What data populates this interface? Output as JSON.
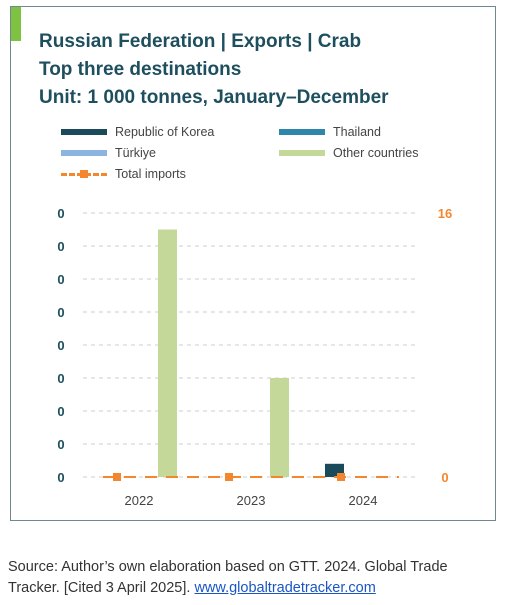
{
  "title": {
    "line1": "Russian Federation | Exports | Crab",
    "line2": "Top three destinations",
    "line3": "Unit: 1 000 tonnes, January–December"
  },
  "source": {
    "text": "Source: Author’s own elaboration based on GTT. 2024. Global Trade Tracker. [Cited 3 April 2025].",
    "link": "www.globaltradetracker.com"
  },
  "colors": {
    "korea": "#1b4a5a",
    "thailand": "#2e86ab",
    "turkiye": "#8bb5e0",
    "other": "#c4d89a",
    "imports": "#f4872e",
    "grid": "#cfcfcf",
    "axis_left": "#1e4f5e",
    "axis_right": "#f4872e"
  },
  "chart_data": {
    "type": "bar",
    "categories": [
      "2022",
      "2023",
      "2024"
    ],
    "series": [
      {
        "name": "Republic of Korea",
        "color_key": "korea",
        "values": [
          0,
          0,
          0.4
        ]
      },
      {
        "name": "Thailand",
        "color_key": "thailand",
        "values": [
          0,
          0,
          0
        ]
      },
      {
        "name": "Türkiye",
        "color_key": "turkiye",
        "values": [
          0,
          0,
          0
        ]
      },
      {
        "name": "Other countries",
        "color_key": "other",
        "values": [
          7.5,
          3,
          0
        ]
      },
      {
        "name": "Total imports",
        "color_key": "imports",
        "type": "line",
        "axis": "right",
        "values": [
          0,
          0,
          0
        ]
      }
    ],
    "y_ticks_left": [
      "0",
      "0",
      "0",
      "0",
      "0",
      "0",
      "0",
      "0",
      "0"
    ],
    "y_left_range": [
      0,
      8
    ],
    "y_ticks_right": [
      "16",
      "0"
    ],
    "y_right_range": [
      0,
      16
    ],
    "grid": true,
    "legend_position": "top"
  }
}
